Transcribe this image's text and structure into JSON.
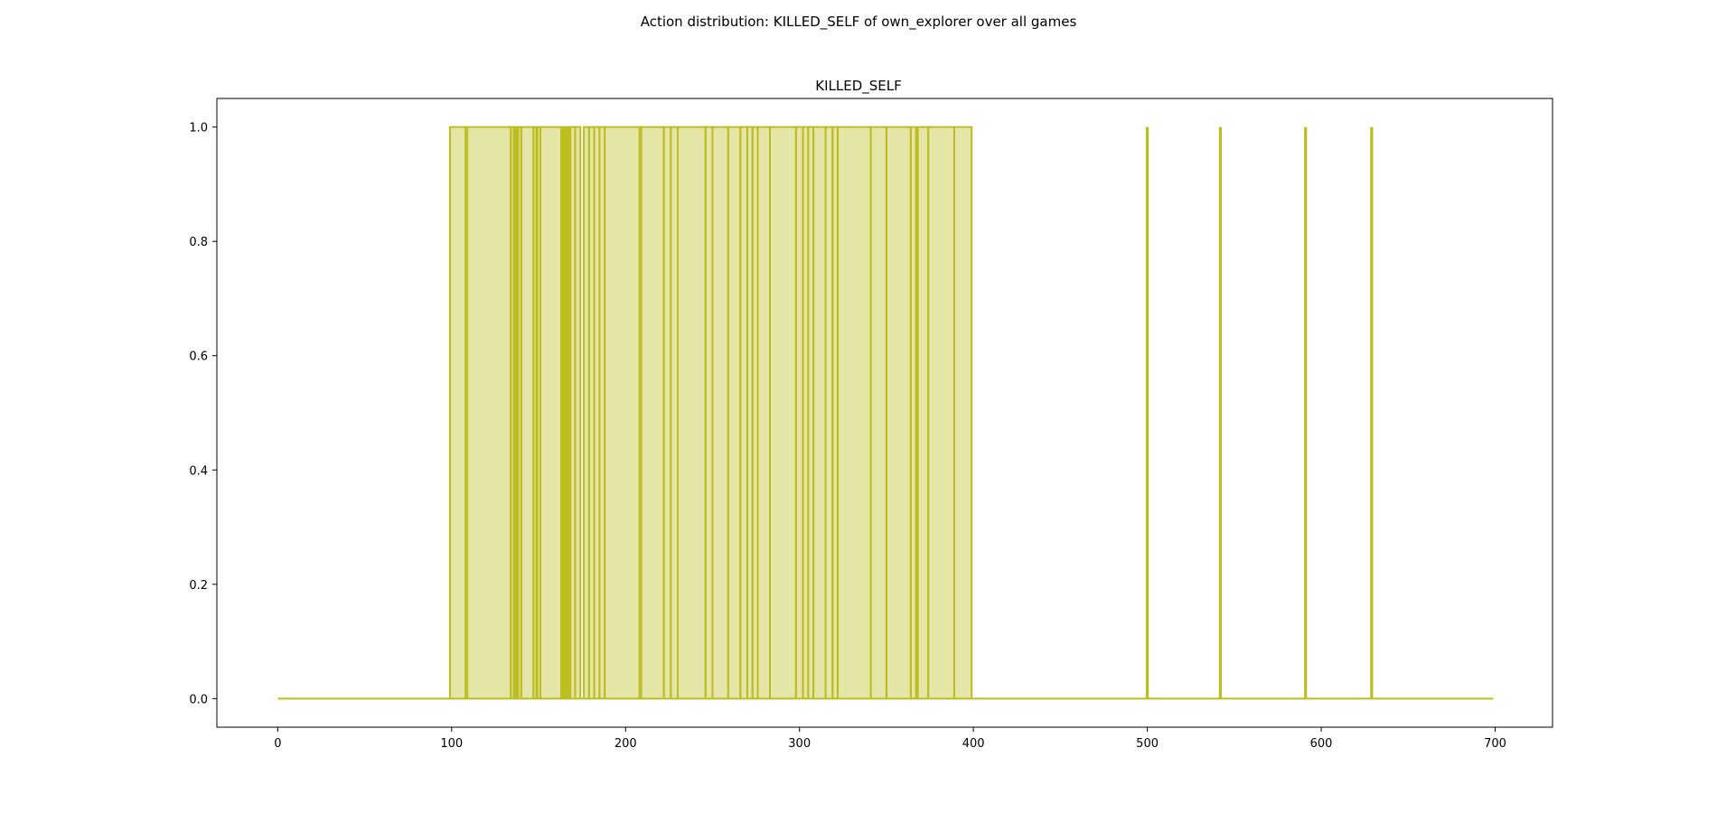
{
  "figure": {
    "suptitle": "Action distribution: KILLED_SELF of own_explorer over all games"
  },
  "chart_data": {
    "type": "area",
    "title": "KILLED_SELF",
    "xlabel": "",
    "ylabel": "",
    "xlim": [
      -35,
      733
    ],
    "ylim": [
      -0.05,
      1.05
    ],
    "x_ticks": [
      0,
      100,
      200,
      300,
      400,
      500,
      600,
      700
    ],
    "y_ticks": [
      0.0,
      0.2,
      0.4,
      0.6,
      0.8,
      1.0
    ],
    "x_tick_labels": [
      "0",
      "100",
      "200",
      "300",
      "400",
      "500",
      "600",
      "700"
    ],
    "y_tick_labels": [
      "0.0",
      "0.2",
      "0.4",
      "0.6",
      "0.8",
      "1.0"
    ],
    "grid": false,
    "color": "#bcbd22",
    "fill_alpha": 0.4,
    "x_range": [
      0,
      699
    ],
    "description_of_values": "step series: 1 inside intervals, 0 elsewhere",
    "intervals_at_one": [
      [
        99,
        108
      ],
      [
        109,
        134
      ],
      [
        134,
        140
      ],
      [
        140,
        147
      ],
      [
        147,
        151
      ],
      [
        151,
        163
      ],
      [
        163,
        171
      ],
      [
        171,
        174
      ],
      [
        176,
        179
      ],
      [
        179,
        182
      ],
      [
        182,
        185
      ],
      [
        185,
        188
      ],
      [
        188,
        208
      ],
      [
        209,
        222
      ],
      [
        222,
        226
      ],
      [
        226,
        230
      ],
      [
        230,
        246
      ],
      [
        246,
        250
      ],
      [
        250,
        259
      ],
      [
        259,
        266
      ],
      [
        266,
        270
      ],
      [
        270,
        273
      ],
      [
        273,
        276
      ],
      [
        276,
        283
      ],
      [
        283,
        298
      ],
      [
        298,
        302
      ],
      [
        302,
        305
      ],
      [
        305,
        308
      ],
      [
        308,
        315
      ],
      [
        315,
        319
      ],
      [
        319,
        322
      ],
      [
        322,
        341
      ],
      [
        341,
        350
      ],
      [
        350,
        364
      ],
      [
        364,
        367
      ],
      [
        368,
        374
      ],
      [
        374,
        389
      ],
      [
        389,
        399
      ]
    ],
    "spikes_at_one": [
      136,
      137,
      138,
      149,
      164,
      165,
      166,
      167,
      168,
      500,
      542,
      591,
      629
    ]
  }
}
